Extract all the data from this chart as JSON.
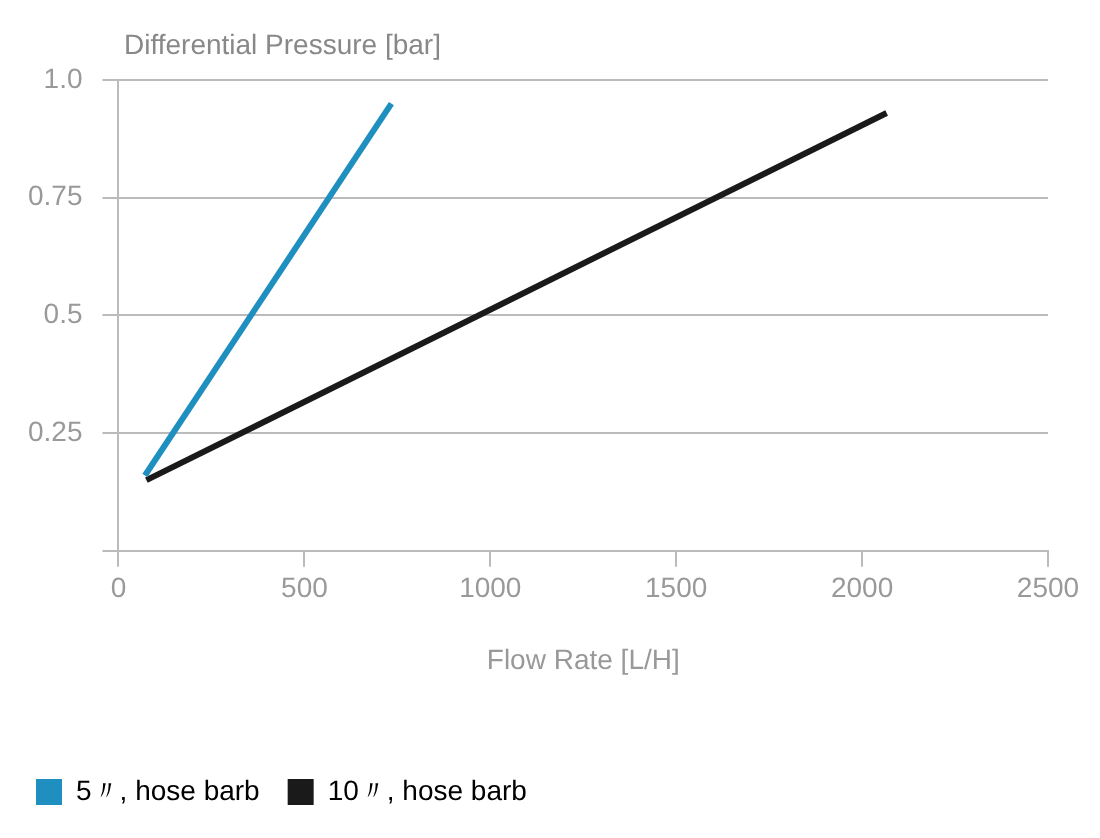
{
  "chart_data": {
    "type": "line",
    "ylabel": "Differential Pressure [bar]",
    "xlabel": "Flow Rate [L/H]",
    "series": [
      {
        "name": "5〃, hose barb",
        "color": "#1f8fbf",
        "x": [
          71,
          734
        ],
        "values": [
          0.16,
          0.95
        ]
      },
      {
        "name": "10〃, hose barb",
        "color": "#1a1a1a",
        "x": [
          75,
          2066
        ],
        "values": [
          0.15,
          0.93
        ]
      }
    ],
    "xlim": [
      0,
      2500
    ],
    "xticks": [
      0,
      500,
      1000,
      1500,
      2000,
      2500
    ],
    "ylim": [
      0,
      1
    ],
    "yticks": [
      {
        "value": 0,
        "label": null
      },
      0.25,
      0.5,
      0.75,
      {
        "value": 1,
        "label": "1.0"
      }
    ],
    "grid": "y",
    "legend": "bottom",
    "marker": "none",
    "line_style": "solid"
  }
}
